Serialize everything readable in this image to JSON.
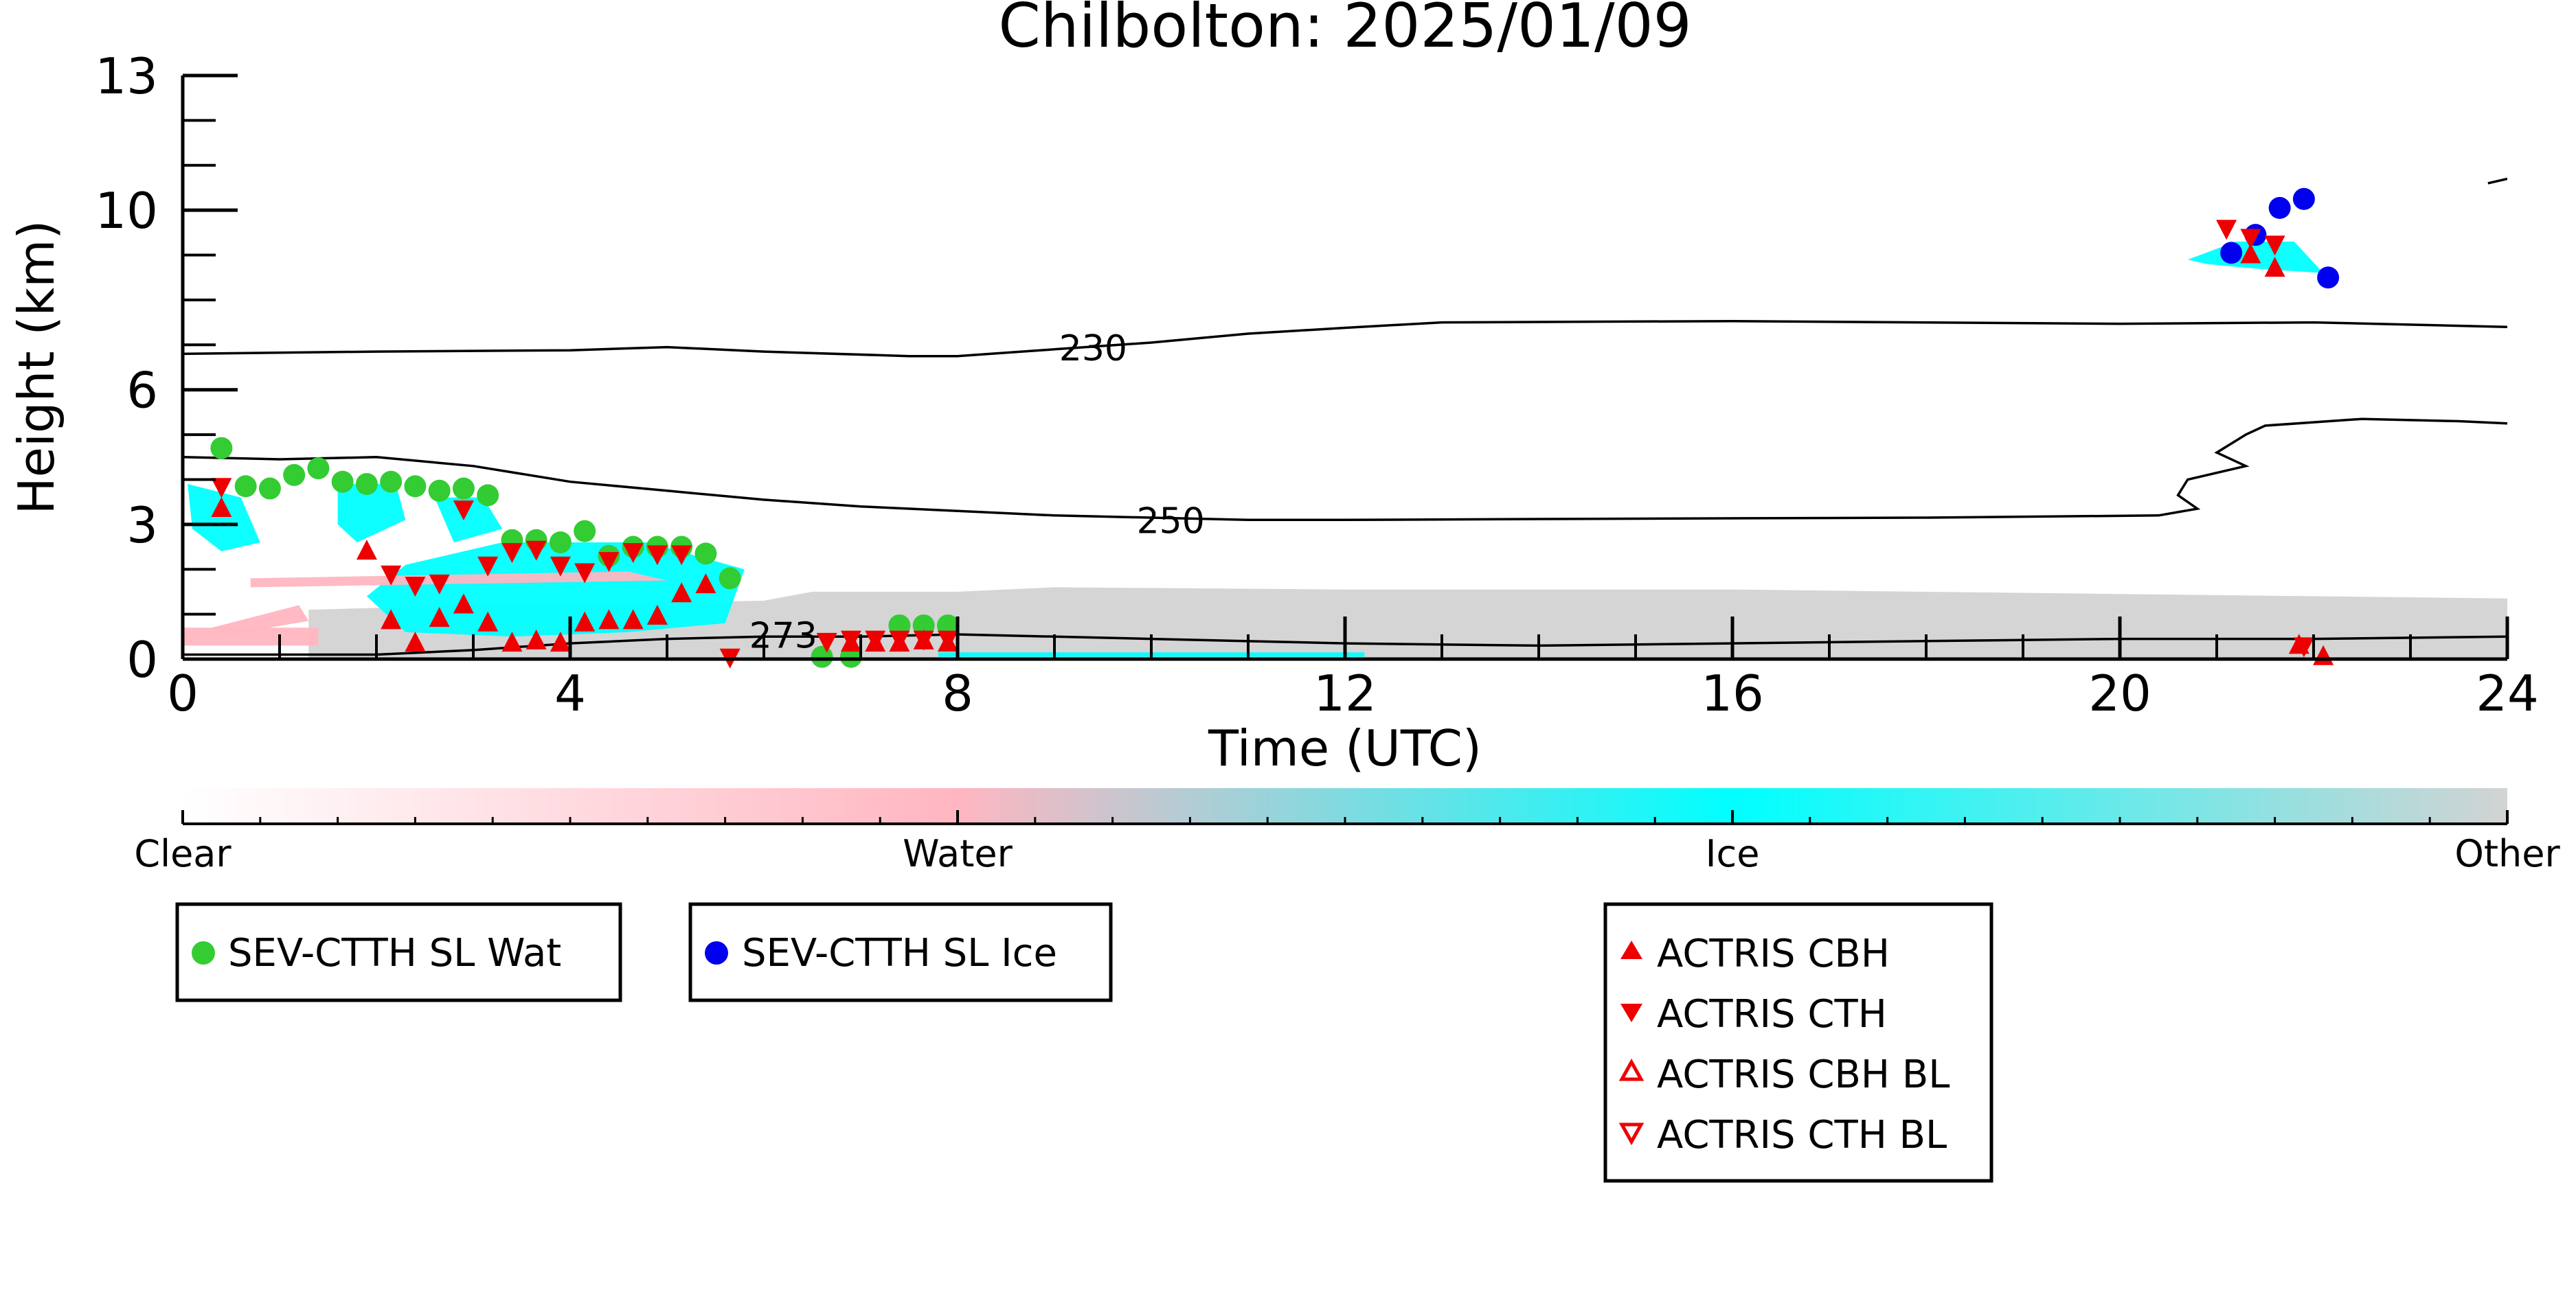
{
  "chart_data": {
    "type": "scatter",
    "title": "Chilbolton: 2025/01/09",
    "xlabel": "Time (UTC)",
    "ylabel": "Height (km)",
    "xlim": [
      0,
      24
    ],
    "ylim": [
      0,
      13
    ],
    "x_ticks": [
      0,
      4,
      8,
      12,
      16,
      20,
      24
    ],
    "y_ticks": [
      0,
      3,
      6,
      10,
      13
    ],
    "grid": false,
    "contours": [
      {
        "label": "230",
        "label_at": [
          9.4,
          6.9
        ],
        "points": [
          [
            0,
            6.8
          ],
          [
            2,
            6.85
          ],
          [
            4,
            6.88
          ],
          [
            5,
            6.95
          ],
          [
            6,
            6.85
          ],
          [
            7.5,
            6.75
          ],
          [
            8,
            6.75
          ],
          [
            9,
            6.9
          ],
          [
            10,
            7.05
          ],
          [
            11,
            7.25
          ],
          [
            12,
            7.38
          ],
          [
            13,
            7.5
          ],
          [
            16,
            7.53
          ],
          [
            20,
            7.47
          ],
          [
            22,
            7.5
          ],
          [
            24,
            7.4
          ]
        ]
      },
      {
        "label": "250",
        "label_at": [
          10.2,
          3.05
        ],
        "points": [
          [
            0,
            4.5
          ],
          [
            1,
            4.45
          ],
          [
            2,
            4.5
          ],
          [
            3,
            4.3
          ],
          [
            4,
            3.95
          ],
          [
            5,
            3.75
          ],
          [
            6,
            3.55
          ],
          [
            7,
            3.4
          ],
          [
            8,
            3.3
          ],
          [
            9,
            3.2
          ],
          [
            10,
            3.15
          ],
          [
            11,
            3.1
          ],
          [
            12,
            3.1
          ],
          [
            14,
            3.12
          ],
          [
            18,
            3.15
          ],
          [
            20.4,
            3.2
          ],
          [
            20.8,
            3.35
          ],
          [
            20.6,
            3.65
          ],
          [
            20.7,
            4.0
          ],
          [
            21.3,
            4.3
          ],
          [
            21.0,
            4.6
          ],
          [
            21.3,
            5.0
          ],
          [
            21.5,
            5.2
          ],
          [
            22.5,
            5.35
          ],
          [
            23.5,
            5.3
          ],
          [
            24,
            5.25
          ]
        ]
      },
      {
        "label": "273",
        "label_at": [
          6.2,
          0.5
        ],
        "points": [
          [
            0,
            0.1
          ],
          [
            2,
            0.1
          ],
          [
            3,
            0.2
          ],
          [
            4,
            0.35
          ],
          [
            5,
            0.45
          ],
          [
            6,
            0.5
          ],
          [
            7,
            0.5
          ],
          [
            8,
            0.55
          ],
          [
            10,
            0.45
          ],
          [
            12,
            0.35
          ],
          [
            14,
            0.3
          ],
          [
            16,
            0.35
          ],
          [
            18,
            0.4
          ],
          [
            20,
            0.45
          ],
          [
            22,
            0.45
          ],
          [
            24,
            0.5
          ]
        ]
      },
      {
        "label": "",
        "label_at": null,
        "points": [
          [
            23.8,
            10.6
          ],
          [
            24,
            10.7
          ]
        ]
      }
    ],
    "series": [
      {
        "name": "SEV-CTTH SL Wat",
        "marker": "circle",
        "color": "#33cc33",
        "points": [
          [
            0.4,
            4.7
          ],
          [
            0.65,
            3.85
          ],
          [
            0.9,
            3.8
          ],
          [
            1.15,
            4.1
          ],
          [
            1.4,
            4.25
          ],
          [
            1.65,
            3.95
          ],
          [
            1.9,
            3.9
          ],
          [
            2.15,
            3.95
          ],
          [
            2.4,
            3.85
          ],
          [
            2.65,
            3.75
          ],
          [
            2.9,
            3.8
          ],
          [
            3.15,
            3.65
          ],
          [
            3.4,
            2.65
          ],
          [
            3.65,
            2.65
          ],
          [
            3.9,
            2.6
          ],
          [
            4.15,
            2.85
          ],
          [
            4.4,
            2.3
          ],
          [
            4.65,
            2.5
          ],
          [
            4.9,
            2.5
          ],
          [
            5.15,
            2.5
          ],
          [
            5.4,
            2.35
          ],
          [
            5.65,
            1.8
          ],
          [
            7.4,
            0.75
          ],
          [
            7.65,
            0.75
          ],
          [
            7.9,
            0.75
          ],
          [
            6.6,
            0.05
          ],
          [
            6.9,
            0.05
          ]
        ]
      },
      {
        "name": "SEV-CTTH SL Ice",
        "marker": "circle",
        "color": "#0000ee",
        "points": [
          [
            21.15,
            9.05
          ],
          [
            21.4,
            9.45
          ],
          [
            21.65,
            10.05
          ],
          [
            21.9,
            10.25
          ],
          [
            22.15,
            8.5
          ]
        ]
      },
      {
        "name": "ACTRIS CBH",
        "marker": "triangle-up",
        "color": "#ee0000",
        "points": [
          [
            0.4,
            3.35
          ],
          [
            1.9,
            2.4
          ],
          [
            2.15,
            0.85
          ],
          [
            2.4,
            0.35
          ],
          [
            2.65,
            0.9
          ],
          [
            2.9,
            1.2
          ],
          [
            3.15,
            0.8
          ],
          [
            3.4,
            0.35
          ],
          [
            3.65,
            0.4
          ],
          [
            3.9,
            0.35
          ],
          [
            4.15,
            0.8
          ],
          [
            4.4,
            0.85
          ],
          [
            4.65,
            0.85
          ],
          [
            4.9,
            0.95
          ],
          [
            5.15,
            1.45
          ],
          [
            5.4,
            1.65
          ],
          [
            6.9,
            0.35
          ],
          [
            7.15,
            0.35
          ],
          [
            7.4,
            0.35
          ],
          [
            7.65,
            0.4
          ],
          [
            7.9,
            0.35
          ],
          [
            21.35,
            9.0
          ],
          [
            21.6,
            8.7
          ],
          [
            21.85,
            0.3
          ],
          [
            22.1,
            0.05
          ]
        ]
      },
      {
        "name": "ACTRIS CTH",
        "marker": "triangle-down",
        "color": "#ee0000",
        "points": [
          [
            0.4,
            3.85
          ],
          [
            2.15,
            1.9
          ],
          [
            2.4,
            1.65
          ],
          [
            2.65,
            1.7
          ],
          [
            2.9,
            3.35
          ],
          [
            3.15,
            2.1
          ],
          [
            3.4,
            2.4
          ],
          [
            3.65,
            2.45
          ],
          [
            3.9,
            2.1
          ],
          [
            4.15,
            1.95
          ],
          [
            4.4,
            2.2
          ],
          [
            4.65,
            2.4
          ],
          [
            4.9,
            2.35
          ],
          [
            5.15,
            2.35
          ],
          [
            5.65,
            0.05
          ],
          [
            6.65,
            0.4
          ],
          [
            6.9,
            0.45
          ],
          [
            7.15,
            0.45
          ],
          [
            7.4,
            0.45
          ],
          [
            7.65,
            0.45
          ],
          [
            7.9,
            0.45
          ],
          [
            21.1,
            9.6
          ],
          [
            21.35,
            9.4
          ],
          [
            21.6,
            9.25
          ],
          [
            21.9,
            0.3
          ]
        ]
      },
      {
        "name": "ACTRIS CBH BL",
        "marker": "triangle-up-open",
        "color": "#ee0000",
        "points": []
      },
      {
        "name": "ACTRIS CTH BL",
        "marker": "triangle-down-open",
        "color": "#ee0000",
        "points": []
      }
    ],
    "classification_regions": [
      {
        "class": "Other",
        "polygon": [
          [
            1.3,
            0
          ],
          [
            1.3,
            1.1
          ],
          [
            3,
            1.2
          ],
          [
            6,
            1.3
          ],
          [
            6.5,
            1.5
          ],
          [
            8,
            1.5
          ],
          [
            9,
            1.6
          ],
          [
            12,
            1.55
          ],
          [
            16,
            1.55
          ],
          [
            20,
            1.45
          ],
          [
            24,
            1.35
          ],
          [
            24,
            0
          ]
        ]
      },
      {
        "class": "Ice",
        "polygon": [
          [
            1.9,
            1.4
          ],
          [
            2.3,
            0.6
          ],
          [
            3.4,
            0.5
          ],
          [
            4.6,
            0.6
          ],
          [
            5.6,
            0.8
          ],
          [
            5.8,
            2.0
          ],
          [
            4.8,
            2.6
          ],
          [
            3.3,
            2.6
          ],
          [
            2.3,
            2.1
          ]
        ]
      },
      {
        "class": "Ice",
        "polygon": [
          [
            0.05,
            3.9
          ],
          [
            0.6,
            3.6
          ],
          [
            0.8,
            2.6
          ],
          [
            0.4,
            2.4
          ],
          [
            0.1,
            2.9
          ]
        ]
      },
      {
        "class": "Ice",
        "polygon": [
          [
            1.6,
            3.9
          ],
          [
            2.2,
            3.9
          ],
          [
            2.3,
            3.1
          ],
          [
            1.8,
            2.6
          ],
          [
            1.6,
            3.0
          ]
        ]
      },
      {
        "class": "Ice",
        "polygon": [
          [
            2.6,
            3.6
          ],
          [
            3.1,
            3.6
          ],
          [
            3.3,
            2.9
          ],
          [
            2.8,
            2.6
          ]
        ]
      },
      {
        "class": "Ice",
        "polygon": [
          [
            20.7,
            8.9
          ],
          [
            21.2,
            9.3
          ],
          [
            21.8,
            9.3
          ],
          [
            22.1,
            8.6
          ],
          [
            21.4,
            8.7
          ],
          [
            20.9,
            8.8
          ]
        ]
      },
      {
        "class": "Ice",
        "polygon": [
          [
            7.8,
            0.15
          ],
          [
            12.2,
            0.15
          ],
          [
            12.2,
            0.05
          ],
          [
            7.8,
            0.05
          ]
        ]
      },
      {
        "class": "Water",
        "polygon": [
          [
            0.7,
            1.8
          ],
          [
            4.6,
            1.95
          ],
          [
            5.0,
            1.75
          ],
          [
            0.7,
            1.6
          ]
        ]
      },
      {
        "class": "Water",
        "polygon": [
          [
            0,
            0.7
          ],
          [
            1.4,
            0.7
          ],
          [
            1.4,
            0.3
          ],
          [
            0,
            0.3
          ]
        ]
      },
      {
        "class": "Water",
        "polygon": [
          [
            0.3,
            0.7
          ],
          [
            1.2,
            1.2
          ],
          [
            1.3,
            0.85
          ],
          [
            0.5,
            0.55
          ]
        ]
      }
    ]
  },
  "colorbar": {
    "labels": [
      "Clear",
      "Water",
      "Ice",
      "Other"
    ],
    "colors": [
      "#ffffff",
      "#ffb6c1",
      "#00ffff",
      "#d3d3d3"
    ]
  },
  "legends": [
    {
      "entries": [
        "SEV-CTTH SL Wat"
      ]
    },
    {
      "entries": [
        "SEV-CTTH SL Ice"
      ]
    },
    {
      "entries": [
        "ACTRIS CBH",
        "ACTRIS CTH",
        "ACTRIS CBH BL",
        "ACTRIS CTH BL"
      ]
    }
  ]
}
